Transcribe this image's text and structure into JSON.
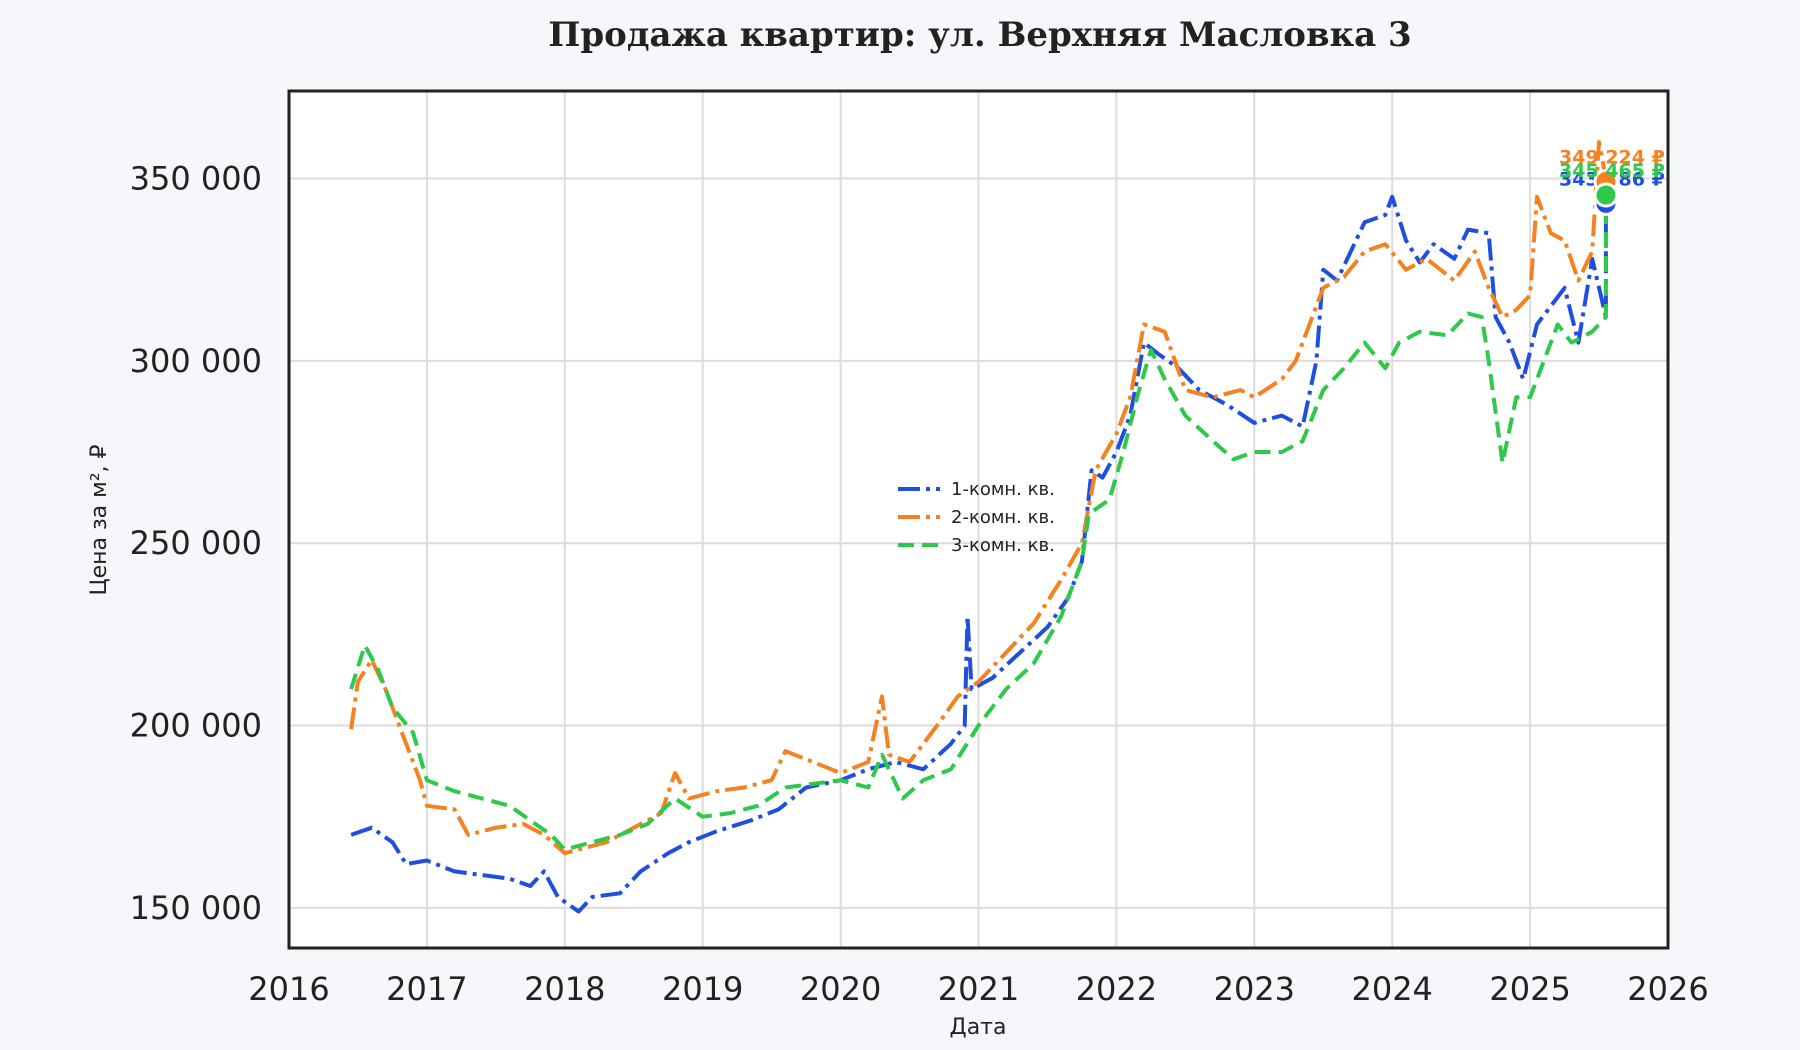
{
  "chart_data": {
    "type": "line",
    "title": "Продажа квартир: ул. Верхняя Масловка 3",
    "xlabel": "Дата",
    "ylabel": "Цена за м², ₽",
    "xlim": [
      2016.0,
      2026.0
    ],
    "ylim": [
      139000,
      374000
    ],
    "grid": true,
    "legend_position": "center",
    "x_ticks": [
      "2016",
      "2017",
      "2018",
      "2019",
      "2020",
      "2021",
      "2022",
      "2023",
      "2024",
      "2025",
      "2026"
    ],
    "y_ticks": [
      "150 000",
      "200 000",
      "250 000",
      "300 000",
      "350 000"
    ],
    "series": [
      {
        "name": "1-комн. кв.",
        "color": "#1f4fe0",
        "dash": "dashdot",
        "end_label": "343 186 ₽",
        "points": [
          [
            2016.45,
            170000
          ],
          [
            2016.6,
            172000
          ],
          [
            2016.75,
            168000
          ],
          [
            2016.85,
            162000
          ],
          [
            2017.0,
            163000
          ],
          [
            2017.2,
            160000
          ],
          [
            2017.4,
            159000
          ],
          [
            2017.6,
            158000
          ],
          [
            2017.75,
            156000
          ],
          [
            2017.85,
            160000
          ],
          [
            2017.95,
            153000
          ],
          [
            2018.1,
            149000
          ],
          [
            2018.2,
            153000
          ],
          [
            2018.4,
            154000
          ],
          [
            2018.55,
            160000
          ],
          [
            2018.75,
            165000
          ],
          [
            2018.9,
            168000
          ],
          [
            2019.1,
            171000
          ],
          [
            2019.35,
            174000
          ],
          [
            2019.55,
            177000
          ],
          [
            2019.75,
            183000
          ],
          [
            2020.0,
            185000
          ],
          [
            2020.2,
            188000
          ],
          [
            2020.4,
            190000
          ],
          [
            2020.6,
            188000
          ],
          [
            2020.8,
            195000
          ],
          [
            2020.9,
            200000
          ],
          [
            2020.92,
            230000
          ],
          [
            2020.95,
            210000
          ],
          [
            2021.1,
            213000
          ],
          [
            2021.3,
            220000
          ],
          [
            2021.5,
            227000
          ],
          [
            2021.65,
            235000
          ],
          [
            2021.75,
            245000
          ],
          [
            2021.82,
            270000
          ],
          [
            2021.9,
            268000
          ],
          [
            2022.0,
            275000
          ],
          [
            2022.1,
            285000
          ],
          [
            2022.2,
            305000
          ],
          [
            2022.3,
            302000
          ],
          [
            2022.45,
            298000
          ],
          [
            2022.6,
            292000
          ],
          [
            2022.8,
            288000
          ],
          [
            2023.0,
            283000
          ],
          [
            2023.2,
            285000
          ],
          [
            2023.35,
            282000
          ],
          [
            2023.45,
            300000
          ],
          [
            2023.5,
            325000
          ],
          [
            2023.6,
            322000
          ],
          [
            2023.7,
            330000
          ],
          [
            2023.8,
            338000
          ],
          [
            2023.95,
            340000
          ],
          [
            2024.0,
            345000
          ],
          [
            2024.1,
            333000
          ],
          [
            2024.2,
            327000
          ],
          [
            2024.3,
            332000
          ],
          [
            2024.45,
            328000
          ],
          [
            2024.55,
            336000
          ],
          [
            2024.7,
            335000
          ],
          [
            2024.75,
            312000
          ],
          [
            2024.85,
            305000
          ],
          [
            2024.95,
            295000
          ],
          [
            2025.05,
            310000
          ],
          [
            2025.15,
            315000
          ],
          [
            2025.25,
            320000
          ],
          [
            2025.35,
            305000
          ],
          [
            2025.45,
            328000
          ],
          [
            2025.55,
            312000
          ],
          [
            2025.55,
            343186
          ]
        ]
      },
      {
        "name": "2-комн. кв.",
        "color": "#f58220",
        "dash": "dashdot",
        "end_label": "349 224 ₽",
        "points": [
          [
            2016.45,
            199000
          ],
          [
            2016.5,
            212000
          ],
          [
            2016.6,
            218000
          ],
          [
            2016.7,
            210000
          ],
          [
            2016.85,
            195000
          ],
          [
            2016.95,
            185000
          ],
          [
            2017.0,
            178000
          ],
          [
            2017.2,
            177000
          ],
          [
            2017.3,
            170000
          ],
          [
            2017.5,
            172000
          ],
          [
            2017.7,
            173000
          ],
          [
            2017.85,
            170000
          ],
          [
            2018.0,
            165000
          ],
          [
            2018.1,
            166000
          ],
          [
            2018.3,
            168000
          ],
          [
            2018.5,
            172000
          ],
          [
            2018.7,
            176000
          ],
          [
            2018.8,
            187000
          ],
          [
            2018.9,
            180000
          ],
          [
            2019.1,
            182000
          ],
          [
            2019.3,
            183000
          ],
          [
            2019.5,
            185000
          ],
          [
            2019.6,
            193000
          ],
          [
            2019.8,
            190000
          ],
          [
            2020.0,
            187000
          ],
          [
            2020.2,
            190000
          ],
          [
            2020.3,
            208000
          ],
          [
            2020.35,
            192000
          ],
          [
            2020.5,
            190000
          ],
          [
            2020.7,
            200000
          ],
          [
            2020.85,
            208000
          ],
          [
            2021.0,
            212000
          ],
          [
            2021.2,
            220000
          ],
          [
            2021.4,
            228000
          ],
          [
            2021.6,
            240000
          ],
          [
            2021.75,
            250000
          ],
          [
            2021.85,
            270000
          ],
          [
            2022.0,
            280000
          ],
          [
            2022.1,
            290000
          ],
          [
            2022.2,
            310000
          ],
          [
            2022.35,
            308000
          ],
          [
            2022.5,
            292000
          ],
          [
            2022.7,
            290000
          ],
          [
            2022.9,
            292000
          ],
          [
            2023.0,
            290000
          ],
          [
            2023.2,
            295000
          ],
          [
            2023.3,
            300000
          ],
          [
            2023.4,
            310000
          ],
          [
            2023.5,
            320000
          ],
          [
            2023.65,
            323000
          ],
          [
            2023.8,
            330000
          ],
          [
            2023.95,
            332000
          ],
          [
            2024.1,
            325000
          ],
          [
            2024.25,
            328000
          ],
          [
            2024.45,
            322000
          ],
          [
            2024.6,
            330000
          ],
          [
            2024.7,
            320000
          ],
          [
            2024.8,
            312000
          ],
          [
            2024.9,
            314000
          ],
          [
            2025.0,
            318000
          ],
          [
            2025.05,
            345000
          ],
          [
            2025.15,
            335000
          ],
          [
            2025.25,
            333000
          ],
          [
            2025.35,
            322000
          ],
          [
            2025.45,
            330000
          ],
          [
            2025.5,
            360000
          ],
          [
            2025.55,
            350000
          ],
          [
            2025.55,
            349224
          ]
        ]
      },
      {
        "name": "3-комн. кв.",
        "color": "#2ec94a",
        "dash": "dashed",
        "end_label": "345 465 ₽",
        "points": [
          [
            2016.45,
            210000
          ],
          [
            2016.55,
            222000
          ],
          [
            2016.65,
            215000
          ],
          [
            2016.75,
            205000
          ],
          [
            2016.9,
            198000
          ],
          [
            2017.0,
            185000
          ],
          [
            2017.2,
            182000
          ],
          [
            2017.4,
            180000
          ],
          [
            2017.6,
            178000
          ],
          [
            2017.75,
            174000
          ],
          [
            2017.9,
            170000
          ],
          [
            2018.0,
            166000
          ],
          [
            2018.2,
            168000
          ],
          [
            2018.4,
            170000
          ],
          [
            2018.6,
            173000
          ],
          [
            2018.8,
            180000
          ],
          [
            2019.0,
            175000
          ],
          [
            2019.2,
            176000
          ],
          [
            2019.4,
            178000
          ],
          [
            2019.6,
            183000
          ],
          [
            2019.8,
            184000
          ],
          [
            2020.0,
            185000
          ],
          [
            2020.2,
            183000
          ],
          [
            2020.3,
            192000
          ],
          [
            2020.45,
            180000
          ],
          [
            2020.6,
            185000
          ],
          [
            2020.8,
            188000
          ],
          [
            2021.0,
            200000
          ],
          [
            2021.2,
            210000
          ],
          [
            2021.4,
            217000
          ],
          [
            2021.6,
            230000
          ],
          [
            2021.75,
            245000
          ],
          [
            2021.8,
            258000
          ],
          [
            2021.95,
            262000
          ],
          [
            2022.05,
            275000
          ],
          [
            2022.15,
            290000
          ],
          [
            2022.25,
            303000
          ],
          [
            2022.35,
            295000
          ],
          [
            2022.5,
            285000
          ],
          [
            2022.7,
            278000
          ],
          [
            2022.85,
            273000
          ],
          [
            2023.0,
            275000
          ],
          [
            2023.2,
            275000
          ],
          [
            2023.35,
            278000
          ],
          [
            2023.5,
            292000
          ],
          [
            2023.65,
            298000
          ],
          [
            2023.8,
            305000
          ],
          [
            2023.95,
            298000
          ],
          [
            2024.05,
            305000
          ],
          [
            2024.2,
            308000
          ],
          [
            2024.4,
            307000
          ],
          [
            2024.55,
            313000
          ],
          [
            2024.65,
            312000
          ],
          [
            2024.7,
            300000
          ],
          [
            2024.8,
            272000
          ],
          [
            2024.9,
            290000
          ],
          [
            2025.0,
            290000
          ],
          [
            2025.1,
            300000
          ],
          [
            2025.2,
            310000
          ],
          [
            2025.3,
            305000
          ],
          [
            2025.45,
            308000
          ],
          [
            2025.55,
            312000
          ],
          [
            2025.55,
            345465
          ]
        ]
      }
    ]
  }
}
